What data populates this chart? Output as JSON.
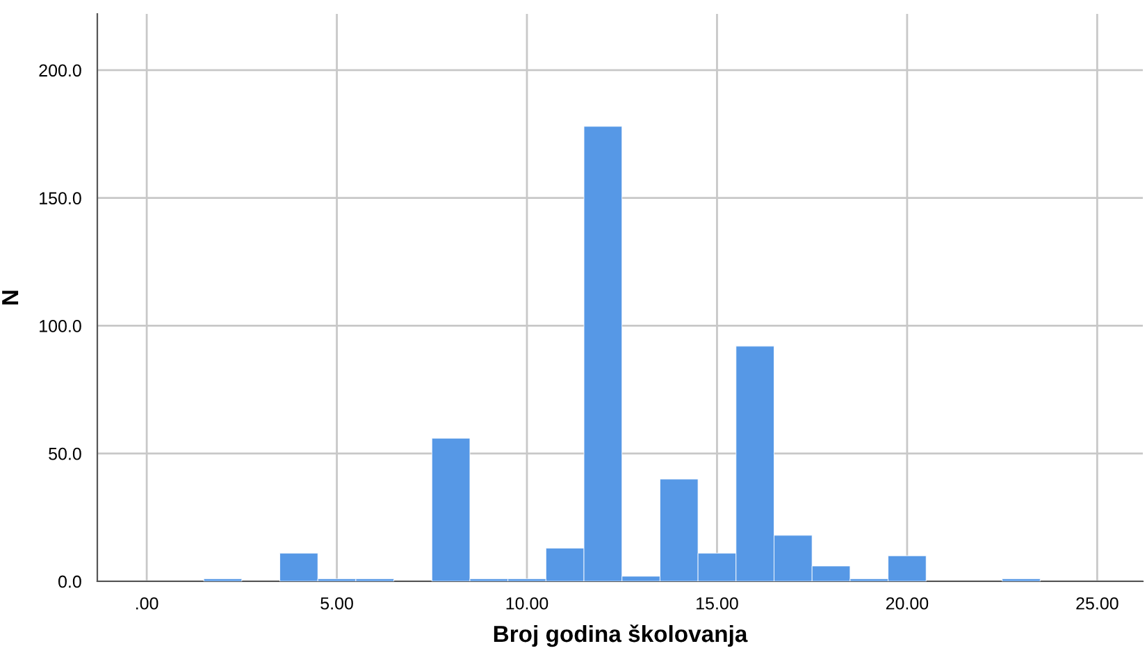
{
  "chart_data": {
    "type": "histogram",
    "xlabel": "Broj godina školovanja",
    "ylabel": "N",
    "bins": [
      1.5,
      2.5,
      3.5,
      4.5,
      5.5,
      6.5,
      7.5,
      8.5,
      9.5,
      10.5,
      11.5,
      12.5,
      13.5,
      14.5,
      15.5,
      16.5,
      17.5,
      18.5,
      19.5,
      20.5,
      21.5,
      22.5,
      23.5
    ],
    "values": [
      1,
      0,
      11,
      1,
      1,
      0,
      56,
      1,
      1,
      13,
      178,
      2,
      40,
      11,
      92,
      18,
      6,
      1,
      10,
      0,
      0,
      1
    ],
    "color": "#5698e6",
    "xlim": [
      -1.3,
      26.2
    ],
    "ylim": [
      0,
      222
    ],
    "xticks": [
      {
        "value": 0,
        "label": ".00"
      },
      {
        "value": 5,
        "label": "5.00"
      },
      {
        "value": 10,
        "label": "10.00"
      },
      {
        "value": 15,
        "label": "15.00"
      },
      {
        "value": 20,
        "label": "20.00"
      },
      {
        "value": 25,
        "label": "25.00"
      }
    ],
    "yticks": [
      {
        "value": 0,
        "label": "0.0"
      },
      {
        "value": 50,
        "label": "50.0"
      },
      {
        "value": 100,
        "label": "100.0"
      },
      {
        "value": 150,
        "label": "150.0"
      },
      {
        "value": 200,
        "label": "200.0"
      }
    ],
    "grid": true
  }
}
